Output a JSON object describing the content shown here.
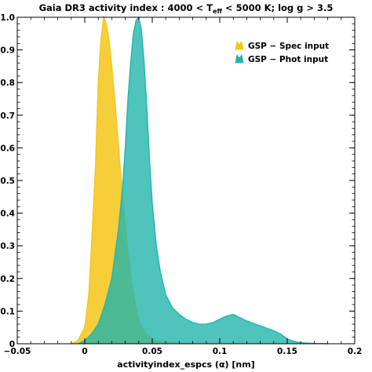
{
  "chart_data": {
    "type": "area",
    "title_main": "Gaia DR3 activity index : 4000 < T",
    "title_sub": "eff",
    "title_rest": " < 5000 K; log g > 3.5",
    "xlabel": "activityindex_espcs (α) [nm]",
    "ylabel": "",
    "xlim": [
      -0.05,
      0.2
    ],
    "ylim": [
      0,
      1.0
    ],
    "xticks": [
      -0.05,
      0,
      0.05,
      0.1,
      0.15,
      0.2
    ],
    "xtick_labels": [
      "−0.05",
      "0",
      "0.05",
      "0.1",
      "0.15",
      "0.2"
    ],
    "yticks": [
      0,
      0.1,
      0.2,
      0.3,
      0.4,
      0.5,
      0.6,
      0.7,
      0.8,
      0.9,
      1.0
    ],
    "ytick_labels": [
      "0",
      "0.1",
      "0.2",
      "0.3",
      "0.4",
      "0.5",
      "0.6",
      "0.7",
      "0.8",
      "0.9",
      "1.0"
    ],
    "grid": false,
    "legend_position": "top-right",
    "series": [
      {
        "name": "GSP − Spec input",
        "color": "#f5c518",
        "x": [
          -0.01,
          -0.005,
          0.0,
          0.003,
          0.005,
          0.008,
          0.01,
          0.012,
          0.014,
          0.016,
          0.018,
          0.02,
          0.022,
          0.024,
          0.026,
          0.028,
          0.03,
          0.032,
          0.035,
          0.038,
          0.04,
          0.045,
          0.05,
          0.055,
          0.06,
          0.07,
          0.08
        ],
        "y": [
          0.0,
          0.01,
          0.05,
          0.15,
          0.3,
          0.55,
          0.8,
          0.93,
          1.0,
          0.98,
          0.93,
          0.85,
          0.76,
          0.66,
          0.55,
          0.45,
          0.36,
          0.28,
          0.18,
          0.11,
          0.07,
          0.03,
          0.015,
          0.008,
          0.004,
          0.002,
          0.0
        ]
      },
      {
        "name": "GSP − Phot input",
        "color": "#22b5ad",
        "x": [
          -0.005,
          0.0,
          0.005,
          0.01,
          0.015,
          0.02,
          0.025,
          0.028,
          0.03,
          0.032,
          0.034,
          0.036,
          0.038,
          0.04,
          0.042,
          0.044,
          0.046,
          0.048,
          0.05,
          0.053,
          0.056,
          0.06,
          0.065,
          0.07,
          0.075,
          0.08,
          0.085,
          0.09,
          0.095,
          0.1,
          0.105,
          0.11,
          0.115,
          0.12,
          0.13,
          0.14,
          0.145,
          0.15,
          0.155,
          0.16,
          0.17,
          0.18
        ],
        "y": [
          0.0,
          0.01,
          0.03,
          0.06,
          0.12,
          0.2,
          0.35,
          0.48,
          0.6,
          0.75,
          0.86,
          0.95,
          0.99,
          1.0,
          0.96,
          0.86,
          0.72,
          0.56,
          0.43,
          0.3,
          0.22,
          0.15,
          0.11,
          0.09,
          0.075,
          0.065,
          0.06,
          0.06,
          0.065,
          0.075,
          0.085,
          0.09,
          0.08,
          0.07,
          0.055,
          0.04,
          0.03,
          0.015,
          0.007,
          0.003,
          0.001,
          0.0
        ]
      }
    ]
  }
}
